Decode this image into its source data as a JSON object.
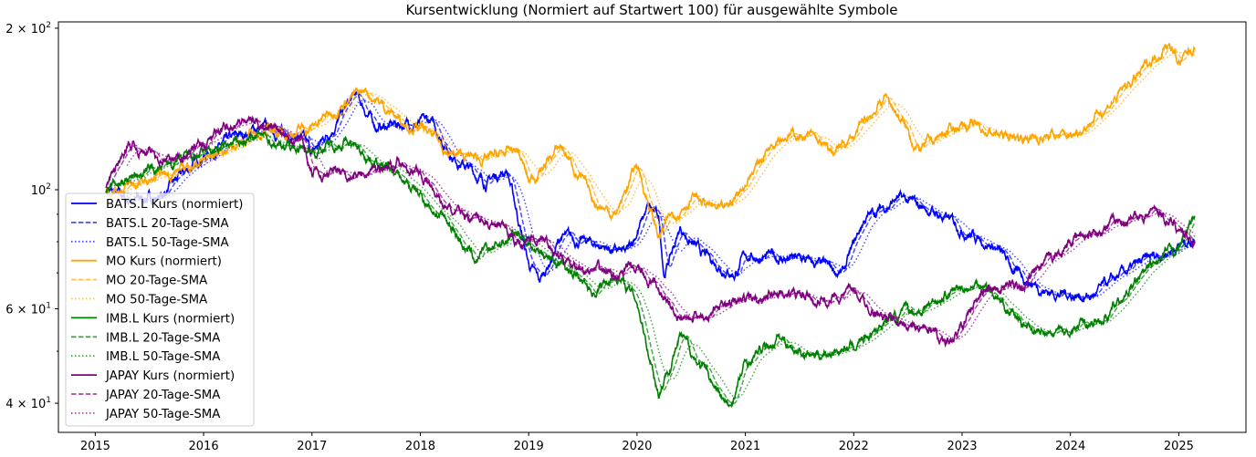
{
  "chart_data": {
    "type": "line",
    "title": "Kursentwicklung (Normiert auf Startwert 100) für ausgewählte Symbole",
    "xlabel": "",
    "ylabel": "",
    "yscale": "log",
    "xlim": [
      2014.66,
      2025.62
    ],
    "ylim": [
      35.3,
      205.5
    ],
    "grid": false,
    "legend_position": "lower-left",
    "x_ticks": [
      "2015",
      "2016",
      "2017",
      "2018",
      "2019",
      "2020",
      "2021",
      "2022",
      "2023",
      "2024",
      "2025"
    ],
    "y_ticks": [
      {
        "value": 200,
        "base": "2 × 10",
        "exp": "2"
      },
      {
        "value": 100,
        "base": "10",
        "exp": "2"
      },
      {
        "value": 60,
        "base": "6 × 10",
        "exp": "1"
      },
      {
        "value": 40,
        "base": "4 × 10",
        "exp": "1"
      }
    ],
    "y_minor_ticks": [
      50,
      70,
      80,
      90
    ],
    "series": [
      {
        "name": "BATS.L Kurs (normiert)",
        "sma20": "BATS.L 20-Tage-SMA",
        "sma50": "BATS.L 50-Tage-SMA",
        "color": "#0000ff",
        "points": [
          [
            2015.1,
            100
          ],
          [
            2015.3,
            95.4
          ],
          [
            2015.6,
            97
          ],
          [
            2016.0,
            116
          ],
          [
            2016.5,
            130.5
          ],
          [
            2016.9,
            125.5
          ],
          [
            2017.0,
            116
          ],
          [
            2017.4,
            149.7
          ],
          [
            2017.6,
            130.5
          ],
          [
            2017.9,
            133.1
          ],
          [
            2018.1,
            133.1
          ],
          [
            2018.3,
            116
          ],
          [
            2018.6,
            103.2
          ],
          [
            2018.8,
            109.4
          ],
          [
            2019.0,
            72.6
          ],
          [
            2019.1,
            67.1
          ],
          [
            2019.3,
            81.6
          ],
          [
            2019.7,
            78.4
          ],
          [
            2019.9,
            75.4
          ],
          [
            2020.1,
            92.5
          ],
          [
            2020.2,
            88.2
          ],
          [
            2020.25,
            69.8
          ],
          [
            2020.4,
            84.8
          ],
          [
            2020.6,
            75.4
          ],
          [
            2020.9,
            69.8
          ],
          [
            2021.0,
            75.4
          ],
          [
            2021.5,
            74.0
          ],
          [
            2021.9,
            69.8
          ],
          [
            2022.1,
            88.2
          ],
          [
            2022.4,
            96.2
          ],
          [
            2022.7,
            91.7
          ],
          [
            2023.0,
            84.8
          ],
          [
            2023.3,
            78.4
          ],
          [
            2023.5,
            69.8
          ],
          [
            2023.8,
            64.5
          ],
          [
            2024.2,
            63.3
          ],
          [
            2024.5,
            69.8
          ],
          [
            2024.8,
            75.4
          ],
          [
            2025.15,
            81.6
          ]
        ]
      },
      {
        "name": "MO Kurs (normiert)",
        "sma20": "MO 20-Tage-SMA",
        "sma50": "MO 50-Tage-SMA",
        "color": "#ffa500",
        "points": [
          [
            2015.1,
            100
          ],
          [
            2015.5,
            103.2
          ],
          [
            2016.0,
            113.8
          ],
          [
            2016.5,
            128
          ],
          [
            2016.8,
            128
          ],
          [
            2017.0,
            130.5
          ],
          [
            2017.3,
            146.7
          ],
          [
            2017.5,
            152.6
          ],
          [
            2017.8,
            135.7
          ],
          [
            2018.0,
            130.5
          ],
          [
            2018.3,
            116
          ],
          [
            2018.6,
            113.8
          ],
          [
            2018.9,
            118.4
          ],
          [
            2019.0,
            103.2
          ],
          [
            2019.3,
            120.7
          ],
          [
            2019.6,
            95.4
          ],
          [
            2019.8,
            89.9
          ],
          [
            2020.0,
            111.6
          ],
          [
            2020.2,
            81.6
          ],
          [
            2020.3,
            88.2
          ],
          [
            2020.5,
            97.3
          ],
          [
            2020.8,
            89.9
          ],
          [
            2021.0,
            103.2
          ],
          [
            2021.3,
            128
          ],
          [
            2021.6,
            125.5
          ],
          [
            2021.8,
            116
          ],
          [
            2022.0,
            125.5
          ],
          [
            2022.3,
            149.7
          ],
          [
            2022.6,
            118.4
          ],
          [
            2022.8,
            125.5
          ],
          [
            2023.0,
            133.1
          ],
          [
            2023.4,
            125.5
          ],
          [
            2023.8,
            125.5
          ],
          [
            2024.0,
            125.5
          ],
          [
            2024.3,
            141.1
          ],
          [
            2024.6,
            160.7
          ],
          [
            2024.9,
            189.3
          ],
          [
            2025.0,
            171.8
          ],
          [
            2025.15,
            185.5
          ]
        ]
      },
      {
        "name": "IMB.L Kurs (normiert)",
        "sma20": "IMB.L 20-Tage-SMA",
        "sma50": "IMB.L 50-Tage-SMA",
        "color": "#008000",
        "points": [
          [
            2015.1,
            100
          ],
          [
            2015.3,
            105.2
          ],
          [
            2016.0,
            116
          ],
          [
            2016.5,
            125.5
          ],
          [
            2016.8,
            120.7
          ],
          [
            2017.0,
            118.4
          ],
          [
            2017.3,
            123.1
          ],
          [
            2017.7,
            109.4
          ],
          [
            2018.0,
            97.3
          ],
          [
            2018.3,
            84.8
          ],
          [
            2018.5,
            74
          ],
          [
            2018.9,
            83.2
          ],
          [
            2019.1,
            76.9
          ],
          [
            2019.3,
            72.6
          ],
          [
            2019.6,
            64.5
          ],
          [
            2019.8,
            69.8
          ],
          [
            2020.0,
            62.1
          ],
          [
            2020.2,
            41.9
          ],
          [
            2020.4,
            53.1
          ],
          [
            2020.7,
            43.6
          ],
          [
            2020.85,
            38.8
          ],
          [
            2021.0,
            47.2
          ],
          [
            2021.3,
            53.1
          ],
          [
            2021.6,
            49.1
          ],
          [
            2022.0,
            51.1
          ],
          [
            2022.3,
            57.4
          ],
          [
            2022.6,
            59.7
          ],
          [
            2022.9,
            64.5
          ],
          [
            2023.2,
            67.1
          ],
          [
            2023.5,
            57.4
          ],
          [
            2023.8,
            53.1
          ],
          [
            2024.0,
            55.2
          ],
          [
            2024.3,
            57.4
          ],
          [
            2024.7,
            69.8
          ],
          [
            2025.0,
            78.4
          ],
          [
            2025.15,
            89.9
          ]
        ]
      },
      {
        "name": "JAPAY Kurs (normiert)",
        "sma20": "JAPAY 20-Tage-SMA",
        "sma50": "JAPAY 50-Tage-SMA",
        "color": "#800080",
        "points": [
          [
            2015.1,
            100
          ],
          [
            2015.3,
            120.7
          ],
          [
            2015.7,
            113.8
          ],
          [
            2016.0,
            120.7
          ],
          [
            2016.3,
            135.7
          ],
          [
            2016.7,
            130.5
          ],
          [
            2016.9,
            125.5
          ],
          [
            2017.0,
            107.3
          ],
          [
            2017.5,
            107.3
          ],
          [
            2017.8,
            113.8
          ],
          [
            2018.0,
            107.3
          ],
          [
            2018.3,
            89.9
          ],
          [
            2018.6,
            88.2
          ],
          [
            2018.9,
            80
          ],
          [
            2019.1,
            81.6
          ],
          [
            2019.4,
            71.1
          ],
          [
            2019.8,
            69.8
          ],
          [
            2020.0,
            71.1
          ],
          [
            2020.2,
            64.5
          ],
          [
            2020.4,
            57.4
          ],
          [
            2020.7,
            59.7
          ],
          [
            2021.0,
            62.1
          ],
          [
            2021.3,
            64.5
          ],
          [
            2021.7,
            62.1
          ],
          [
            2022.0,
            64.5
          ],
          [
            2022.3,
            57.4
          ],
          [
            2022.6,
            55.2
          ],
          [
            2022.9,
            52
          ],
          [
            2023.2,
            64.5
          ],
          [
            2023.6,
            67.1
          ],
          [
            2024.0,
            80
          ],
          [
            2024.4,
            86.5
          ],
          [
            2024.8,
            91.7
          ],
          [
            2025.15,
            80
          ]
        ]
      }
    ]
  }
}
